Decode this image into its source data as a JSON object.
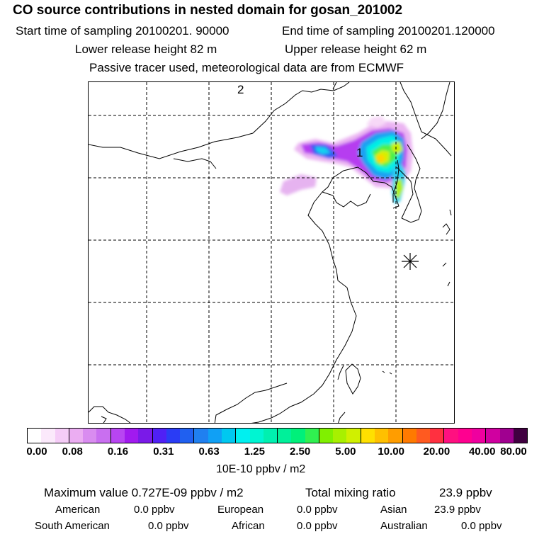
{
  "header": {
    "title": "CO  source contributions in nested domain for gosan_201002",
    "start_label": "Start time of sampling 20100201. 90000",
    "end_label": "End time of sampling 20100201.120000",
    "lower_release": "Lower release height   82 m",
    "upper_release": "Upper release height   62 m",
    "tracer_note": "Passive tracer used, meteorological data are from ECMWF"
  },
  "map": {
    "marker_1": "1",
    "marker_2": "2",
    "receptor_icon": "asterisk-icon"
  },
  "colorbar": {
    "colors": [
      "#ffffff",
      "#fbe9fb",
      "#f5ccf7",
      "#ebadf2",
      "#d98cf0",
      "#c96ff0",
      "#b845f2",
      "#a11aef",
      "#7a1ae8",
      "#5020f5",
      "#2a3cf5",
      "#2060f0",
      "#2080f0",
      "#10a0f5",
      "#00c8f0",
      "#00f0f0",
      "#00f5d2",
      "#00f0b0",
      "#00f09a",
      "#00f07a",
      "#30f050",
      "#80f000",
      "#a8f000",
      "#d0f000",
      "#ffe000",
      "#ffc000",
      "#ff9d00",
      "#ff7a00",
      "#ff5a20",
      "#ff3040",
      "#ff1080",
      "#ff0090",
      "#ef009f",
      "#d000a0",
      "#a00090",
      "#400040"
    ],
    "tick_labels": [
      "0.00",
      "0.08",
      "0.16",
      "0.31",
      "0.63",
      "1.25",
      "2.50",
      "5.00",
      "10.00",
      "20.00",
      "40.00",
      "80.00"
    ],
    "unit": "10E-10 ppbv / m2"
  },
  "summary": {
    "maximum": "Maximum value  0.727E-09 ppbv / m2",
    "total": "Total mixing ratio",
    "total_value": "23.9 ppbv",
    "american_label": "American",
    "american_value": "0.0 ppbv",
    "european_label": "European",
    "european_value": "0.0 ppbv",
    "asian_label": "Asian",
    "asian_value": "23.9 ppbv",
    "south_american_label": "South American",
    "south_american_value": "0.0 ppbv",
    "african_label": "African",
    "african_value": "0.0 ppbv",
    "australian_label": "Australian",
    "australian_value": "0.0 ppbv"
  }
}
